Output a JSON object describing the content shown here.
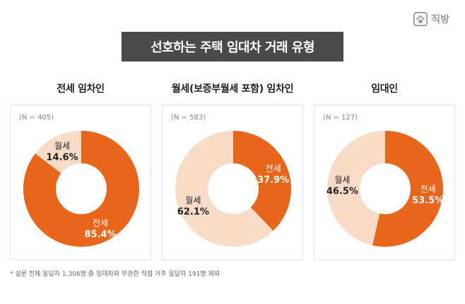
{
  "brand": {
    "logo_text": "직방",
    "icon": "house-logo-icon"
  },
  "title": "선호하는 주택 임대차 거래 유형",
  "colors": {
    "primary": "#E8651A",
    "secondary": "#F9DCC8",
    "title_bg": "#4A4A4A"
  },
  "footnote": "* 설문 전체 응답자 1,306명 중 임대차와 무관한 직접 거주 응답자 191명 제외",
  "chart_data": [
    {
      "type": "pie",
      "title": "전세 임차인",
      "n_label": "(N = 405)",
      "slices": [
        {
          "name": "전세",
          "value": 85.4,
          "label": "85.4%"
        },
        {
          "name": "월세",
          "value": 14.6,
          "label": "14.6%"
        }
      ]
    },
    {
      "type": "pie",
      "title": "월세(보증부월세 포함) 임차인",
      "n_label": "(N = 583)",
      "slices": [
        {
          "name": "전세",
          "value": 37.9,
          "label": "37.9%"
        },
        {
          "name": "월세",
          "value": 62.1,
          "label": "62.1%"
        }
      ]
    },
    {
      "type": "pie",
      "title": "임대인",
      "n_label": "(N = 127)",
      "slices": [
        {
          "name": "전세",
          "value": 53.5,
          "label": "53.5%"
        },
        {
          "name": "월세",
          "value": 46.5,
          "label": "46.5%"
        }
      ]
    }
  ]
}
